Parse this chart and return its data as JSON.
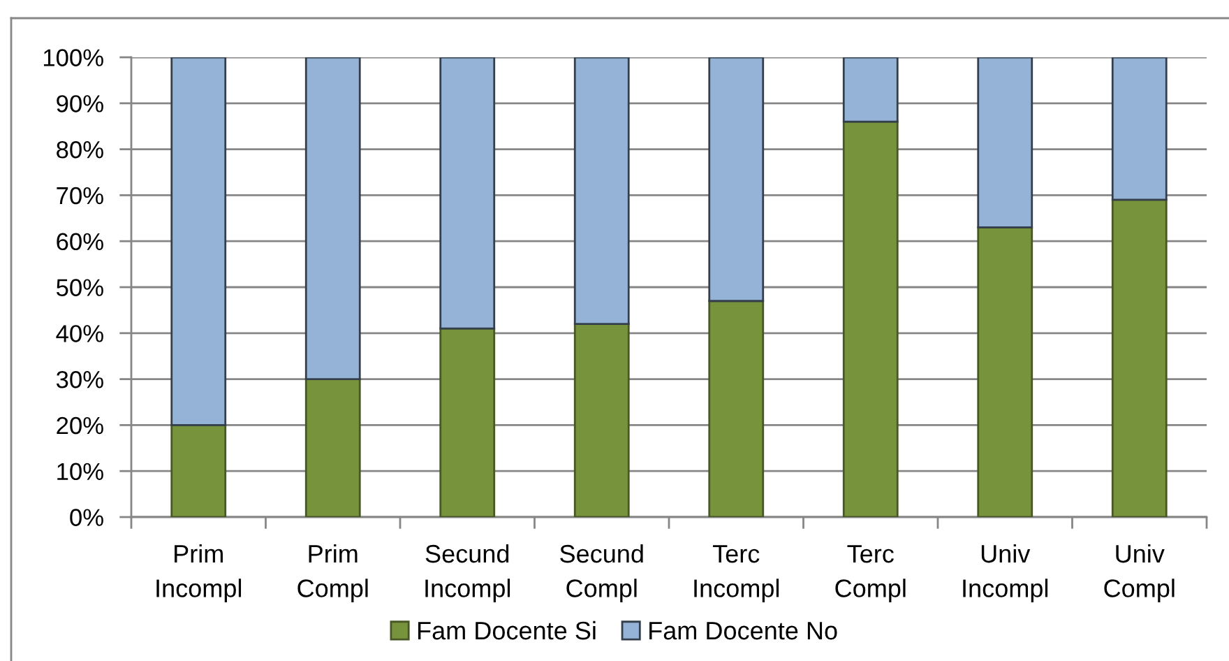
{
  "chart_data": {
    "type": "bar",
    "stacked": true,
    "categories": [
      "Prim Incompl",
      "Prim Compl",
      "Secund Incompl",
      "Secund Compl",
      "Terc Incompl",
      "Terc Compl",
      "Univ Incompl",
      "Univ Compl"
    ],
    "series": [
      {
        "name": "Fam Docente Si",
        "color": "#77933c",
        "values": [
          20,
          30,
          41,
          42,
          47,
          86,
          63,
          69
        ]
      },
      {
        "name": "Fam Docente No",
        "color": "#95b3d7",
        "values": [
          80,
          70,
          59,
          58,
          53,
          14,
          37,
          31
        ]
      }
    ],
    "ylim": [
      0,
      100
    ],
    "yticks": [
      {
        "value": 0,
        "label": "0%"
      },
      {
        "value": 10,
        "label": "10%"
      },
      {
        "value": 20,
        "label": "20%"
      },
      {
        "value": 30,
        "label": "30%"
      },
      {
        "value": 40,
        "label": "40%"
      },
      {
        "value": 50,
        "label": "50%"
      },
      {
        "value": 60,
        "label": "60%"
      },
      {
        "value": 70,
        "label": "70%"
      },
      {
        "value": 80,
        "label": "80%"
      },
      {
        "value": 90,
        "label": "90%"
      },
      {
        "value": 100,
        "label": "100%"
      }
    ],
    "grid": "y",
    "legend": "bottom"
  }
}
